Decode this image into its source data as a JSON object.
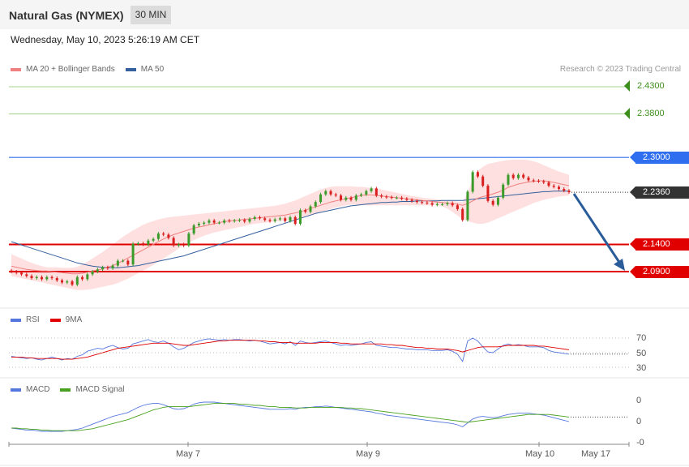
{
  "header": {
    "title": "Natural Gas (NYMEX)",
    "timeframe": "30 MIN",
    "datetime": "Wednesday, May 10, 2023 5:26:19 AM CET",
    "credit": "Research © 2023 Trading Central"
  },
  "colors": {
    "ma20": "#f08080",
    "ma50": "#34609e",
    "resistance": "#2f6fef",
    "support": "#e00000",
    "target": "#58a61d",
    "last": "#333333",
    "bull": "#3a9b2b",
    "bear": "#d81e1e",
    "band": "#ffe0e0",
    "rsi": "#5577dd",
    "rsi_ma": "#e00000",
    "macd": "#5577dd",
    "macd_signal": "#4aa11d",
    "arrow": "#2a5c9a"
  },
  "legend": {
    "main": [
      {
        "label": "MA 20 + Bollinger Bands",
        "color": "#f08080"
      },
      {
        "label": "MA 50",
        "color": "#34609e"
      }
    ],
    "rsi": [
      {
        "label": "RSI",
        "color": "#5577dd"
      },
      {
        "label": "9MA",
        "color": "#e00000"
      }
    ],
    "macd": [
      {
        "label": "MACD",
        "color": "#5577dd"
      },
      {
        "label": "MACD Signal",
        "color": "#4aa11d"
      }
    ]
  },
  "price_tags": [
    {
      "value": "2.4300",
      "kind": "target"
    },
    {
      "value": "2.3800",
      "kind": "target"
    },
    {
      "value": "2.3000",
      "kind": "resistance"
    },
    {
      "value": "2.2360",
      "kind": "last"
    },
    {
      "value": "2.1400",
      "kind": "support"
    },
    {
      "value": "2.0900",
      "kind": "support"
    }
  ],
  "rsi_ticks": [
    "70",
    "50",
    "30"
  ],
  "macd_ticks": [
    "0",
    "0",
    "-0"
  ],
  "x_labels": [
    "May 7",
    "May 9",
    "May 10",
    "May 17"
  ],
  "chart_data": {
    "type": "candlestick",
    "title": "Natural Gas (NYMEX)",
    "timeframe": "30 MIN",
    "ylim": [
      2.06,
      2.45
    ],
    "levels": {
      "targets": [
        2.43,
        2.38
      ],
      "resistance": [
        2.3
      ],
      "last": 2.236,
      "support": [
        2.14,
        2.09
      ]
    },
    "close": [
      2.09,
      2.088,
      2.085,
      2.082,
      2.078,
      2.08,
      2.076,
      2.08,
      2.078,
      2.074,
      2.07,
      2.072,
      2.066,
      2.08,
      2.076,
      2.085,
      2.09,
      2.094,
      2.098,
      2.096,
      2.101,
      2.11,
      2.11,
      2.103,
      2.141,
      2.142,
      2.14,
      2.147,
      2.15,
      2.16,
      2.158,
      2.152,
      2.138,
      2.14,
      2.138,
      2.16,
      2.175,
      2.178,
      2.18,
      2.184,
      2.18,
      2.18,
      2.184,
      2.183,
      2.184,
      2.185,
      2.182,
      2.187,
      2.19,
      2.188,
      2.185,
      2.183,
      2.186,
      2.188,
      2.183,
      2.19,
      2.178,
      2.203,
      2.2,
      2.21,
      2.218,
      2.232,
      2.238,
      2.232,
      2.23,
      2.222,
      2.226,
      2.222,
      2.23,
      2.232,
      2.238,
      2.243,
      2.23,
      2.228,
      2.227,
      2.226,
      2.226,
      2.224,
      2.222,
      2.22,
      2.218,
      2.217,
      2.216,
      2.213,
      2.214,
      2.214,
      2.216,
      2.212,
      2.205,
      2.185,
      2.237,
      2.273,
      2.265,
      2.248,
      2.22,
      2.213,
      2.226,
      2.25,
      2.268,
      2.262,
      2.268,
      2.263,
      2.258,
      2.257,
      2.256,
      2.254,
      2.248,
      2.246,
      2.242,
      2.239,
      2.236
    ],
    "ma20": [
      2.1,
      2.098,
      2.096,
      2.094,
      2.093,
      2.092,
      2.091,
      2.091,
      2.09,
      2.089,
      2.088,
      2.087,
      2.086,
      2.086,
      2.087,
      2.089,
      2.091,
      2.093,
      2.095,
      2.098,
      2.101,
      2.105,
      2.11,
      2.115,
      2.12,
      2.125,
      2.13,
      2.135,
      2.14,
      2.145,
      2.15,
      2.154,
      2.158,
      2.161,
      2.164,
      2.167,
      2.17,
      2.172,
      2.174,
      2.176,
      2.178,
      2.18,
      2.182,
      2.183,
      2.184,
      2.185,
      2.186,
      2.187,
      2.188,
      2.189,
      2.19,
      2.191,
      2.192,
      2.193,
      2.194,
      2.196,
      2.198,
      2.2,
      2.203,
      2.206,
      2.209,
      2.212,
      2.215,
      2.218,
      2.22,
      2.222,
      2.224,
      2.226,
      2.228,
      2.23,
      2.231,
      2.231,
      2.23,
      2.229,
      2.228,
      2.227,
      2.226,
      2.225,
      2.224,
      2.223,
      2.222,
      2.221,
      2.22,
      2.219,
      2.218,
      2.217,
      2.216,
      2.215,
      2.214,
      2.212,
      2.215,
      2.22,
      2.225,
      2.228,
      2.23,
      2.233,
      2.236,
      2.24,
      2.245,
      2.248,
      2.251,
      2.253,
      2.255,
      2.256,
      2.257,
      2.257,
      2.256,
      2.254,
      2.252,
      2.25,
      2.248
    ],
    "ma50": [
      2.145,
      2.142,
      2.139,
      2.136,
      2.133,
      2.13,
      2.127,
      2.124,
      2.121,
      2.118,
      2.115,
      2.112,
      2.109,
      2.106,
      2.104,
      2.102,
      2.1,
      2.099,
      2.098,
      2.097,
      2.097,
      2.097,
      2.098,
      2.099,
      2.1,
      2.101,
      2.103,
      2.105,
      2.107,
      2.109,
      2.111,
      2.113,
      2.115,
      2.117,
      2.119,
      2.122,
      2.125,
      2.128,
      2.131,
      2.134,
      2.137,
      2.14,
      2.143,
      2.146,
      2.149,
      2.152,
      2.155,
      2.158,
      2.161,
      2.164,
      2.167,
      2.17,
      2.173,
      2.176,
      2.179,
      2.182,
      2.185,
      2.188,
      2.191,
      2.194,
      2.197,
      2.199,
      2.201,
      2.203,
      2.205,
      2.207,
      2.209,
      2.211,
      2.212,
      2.213,
      2.214,
      2.215,
      2.216,
      2.217,
      2.217,
      2.218,
      2.218,
      2.219,
      2.219,
      2.219,
      2.22,
      2.22,
      2.22,
      2.22,
      2.22,
      2.221,
      2.221,
      2.221,
      2.221,
      2.221,
      2.222,
      2.223,
      2.224,
      2.225,
      2.226,
      2.227,
      2.228,
      2.229,
      2.23,
      2.231,
      2.232,
      2.233,
      2.234,
      2.235,
      2.236,
      2.237,
      2.237,
      2.238,
      2.238,
      2.238,
      2.238
    ],
    "band_upper": [
      2.122,
      2.118,
      2.114,
      2.11,
      2.106,
      2.103,
      2.1,
      2.098,
      2.098,
      2.098,
      2.097,
      2.097,
      2.097,
      2.099,
      2.103,
      2.108,
      2.114,
      2.12,
      2.126,
      2.133,
      2.14,
      2.147,
      2.154,
      2.16,
      2.166,
      2.171,
      2.176,
      2.18,
      2.183,
      2.186,
      2.188,
      2.19,
      2.191,
      2.192,
      2.193,
      2.194,
      2.195,
      2.196,
      2.197,
      2.198,
      2.199,
      2.2,
      2.201,
      2.202,
      2.203,
      2.204,
      2.205,
      2.206,
      2.207,
      2.208,
      2.209,
      2.21,
      2.211,
      2.213,
      2.215,
      2.218,
      2.221,
      2.225,
      2.229,
      2.233,
      2.237,
      2.241,
      2.244,
      2.246,
      2.247,
      2.247,
      2.247,
      2.247,
      2.246,
      2.246,
      2.245,
      2.244,
      2.243,
      2.241,
      2.239,
      2.237,
      2.235,
      2.233,
      2.231,
      2.229,
      2.228,
      2.226,
      2.225,
      2.224,
      2.223,
      2.222,
      2.221,
      2.22,
      2.219,
      2.218,
      2.235,
      2.26,
      2.275,
      2.283,
      2.288,
      2.29,
      2.292,
      2.294,
      2.295,
      2.296,
      2.296,
      2.296,
      2.295,
      2.293,
      2.29,
      2.286,
      2.282,
      2.278,
      2.274,
      2.271,
      2.268
    ],
    "band_lower": [
      2.082,
      2.08,
      2.078,
      2.076,
      2.074,
      2.072,
      2.07,
      2.068,
      2.066,
      2.064,
      2.062,
      2.06,
      2.058,
      2.056,
      2.056,
      2.057,
      2.058,
      2.06,
      2.062,
      2.064,
      2.066,
      2.069,
      2.073,
      2.077,
      2.082,
      2.087,
      2.092,
      2.097,
      2.102,
      2.108,
      2.114,
      2.12,
      2.126,
      2.132,
      2.138,
      2.143,
      2.148,
      2.152,
      2.156,
      2.159,
      2.162,
      2.164,
      2.166,
      2.168,
      2.17,
      2.172,
      2.174,
      2.176,
      2.178,
      2.179,
      2.18,
      2.181,
      2.182,
      2.183,
      2.184,
      2.185,
      2.186,
      2.188,
      2.19,
      2.193,
      2.196,
      2.199,
      2.202,
      2.205,
      2.208,
      2.21,
      2.212,
      2.213,
      2.213,
      2.213,
      2.212,
      2.212,
      2.212,
      2.212,
      2.212,
      2.212,
      2.212,
      2.212,
      2.212,
      2.212,
      2.212,
      2.212,
      2.212,
      2.212,
      2.212,
      2.21,
      2.206,
      2.2,
      2.193,
      2.186,
      2.183,
      2.18,
      2.178,
      2.178,
      2.18,
      2.184,
      2.188,
      2.192,
      2.196,
      2.2,
      2.204,
      2.208,
      2.212,
      2.216,
      2.219,
      2.222,
      2.224,
      2.226,
      2.228,
      2.229,
      2.23
    ],
    "rsi": [
      45,
      44,
      43,
      42,
      43,
      41,
      40,
      42,
      44,
      42,
      40,
      42,
      41,
      45,
      47,
      52,
      54,
      56,
      55,
      58,
      60,
      57,
      55,
      56,
      62,
      64,
      66,
      68,
      65,
      64,
      66,
      63,
      58,
      54,
      56,
      60,
      64,
      66,
      68,
      69,
      68,
      67,
      68,
      67,
      68,
      68,
      67,
      66,
      67,
      66,
      64,
      62,
      63,
      64,
      62,
      65,
      60,
      66,
      64,
      63,
      64,
      65,
      66,
      64,
      62,
      60,
      61,
      60,
      61,
      62,
      64,
      65,
      60,
      59,
      58,
      57,
      57,
      56,
      55,
      55,
      54,
      54,
      54,
      53,
      53,
      53,
      54,
      52,
      48,
      38,
      66,
      70,
      66,
      58,
      51,
      50,
      55,
      60,
      62,
      60,
      61,
      60,
      58,
      58,
      58,
      57,
      53,
      51,
      50,
      49,
      48
    ],
    "rsi_ma": [
      44,
      44,
      44,
      43,
      43,
      42,
      42,
      42,
      42,
      42,
      41,
      41,
      41,
      42,
      43,
      44,
      46,
      48,
      50,
      52,
      54,
      56,
      57,
      58,
      59,
      60,
      61,
      62,
      63,
      63,
      63,
      63,
      62,
      61,
      60,
      60,
      61,
      62,
      63,
      64,
      65,
      66,
      66,
      67,
      67,
      67,
      67,
      67,
      67,
      66,
      66,
      65,
      65,
      64,
      64,
      64,
      63,
      63,
      63,
      63,
      63,
      64,
      64,
      64,
      64,
      63,
      63,
      62,
      62,
      62,
      62,
      62,
      62,
      62,
      61,
      61,
      60,
      60,
      59,
      58,
      57,
      57,
      56,
      56,
      55,
      55,
      55,
      54,
      53,
      51,
      53,
      55,
      57,
      58,
      58,
      58,
      58,
      59,
      60,
      60,
      60,
      60,
      60,
      60,
      59,
      59,
      58,
      57,
      56,
      55,
      54
    ],
    "macd": [
      -0.01,
      -0.011,
      -0.012,
      -0.013,
      -0.013,
      -0.014,
      -0.015,
      -0.015,
      -0.015,
      -0.015,
      -0.015,
      -0.014,
      -0.013,
      -0.012,
      -0.01,
      -0.007,
      -0.004,
      -0.001,
      0.002,
      0.005,
      0.008,
      0.01,
      0.012,
      0.014,
      0.018,
      0.022,
      0.025,
      0.027,
      0.028,
      0.028,
      0.026,
      0.023,
      0.02,
      0.019,
      0.02,
      0.023,
      0.027,
      0.029,
      0.03,
      0.03,
      0.03,
      0.029,
      0.028,
      0.027,
      0.026,
      0.025,
      0.024,
      0.023,
      0.022,
      0.021,
      0.02,
      0.019,
      0.019,
      0.019,
      0.019,
      0.02,
      0.019,
      0.021,
      0.022,
      0.022,
      0.023,
      0.023,
      0.024,
      0.023,
      0.022,
      0.021,
      0.02,
      0.019,
      0.018,
      0.017,
      0.016,
      0.015,
      0.013,
      0.012,
      0.01,
      0.009,
      0.008,
      0.007,
      0.006,
      0.005,
      0.004,
      0.003,
      0.002,
      0.001,
      0.0,
      -0.001,
      -0.002,
      -0.003,
      -0.005,
      -0.008,
      -0.002,
      0.004,
      0.007,
      0.008,
      0.007,
      0.006,
      0.007,
      0.009,
      0.011,
      0.012,
      0.013,
      0.013,
      0.013,
      0.012,
      0.011,
      0.01,
      0.008,
      0.006,
      0.004,
      0.002,
      0.0
    ],
    "macd_signal": [
      -0.01,
      -0.01,
      -0.011,
      -0.011,
      -0.012,
      -0.012,
      -0.013,
      -0.013,
      -0.014,
      -0.014,
      -0.014,
      -0.014,
      -0.014,
      -0.014,
      -0.013,
      -0.012,
      -0.011,
      -0.009,
      -0.007,
      -0.005,
      -0.003,
      -0.001,
      0.001,
      0.003,
      0.006,
      0.009,
      0.012,
      0.015,
      0.018,
      0.02,
      0.022,
      0.023,
      0.023,
      0.023,
      0.023,
      0.023,
      0.024,
      0.025,
      0.026,
      0.027,
      0.028,
      0.028,
      0.028,
      0.028,
      0.028,
      0.027,
      0.027,
      0.026,
      0.025,
      0.025,
      0.024,
      0.023,
      0.023,
      0.022,
      0.022,
      0.022,
      0.021,
      0.021,
      0.021,
      0.022,
      0.022,
      0.022,
      0.022,
      0.022,
      0.022,
      0.022,
      0.021,
      0.021,
      0.02,
      0.02,
      0.019,
      0.018,
      0.017,
      0.016,
      0.015,
      0.014,
      0.013,
      0.012,
      0.011,
      0.01,
      0.009,
      0.008,
      0.007,
      0.006,
      0.005,
      0.004,
      0.003,
      0.002,
      0.001,
      0.0,
      -0.001,
      0.0,
      0.001,
      0.002,
      0.003,
      0.004,
      0.005,
      0.006,
      0.007,
      0.008,
      0.009,
      0.01,
      0.011,
      0.011,
      0.011,
      0.011,
      0.011,
      0.01,
      0.009,
      0.008,
      0.007
    ]
  }
}
